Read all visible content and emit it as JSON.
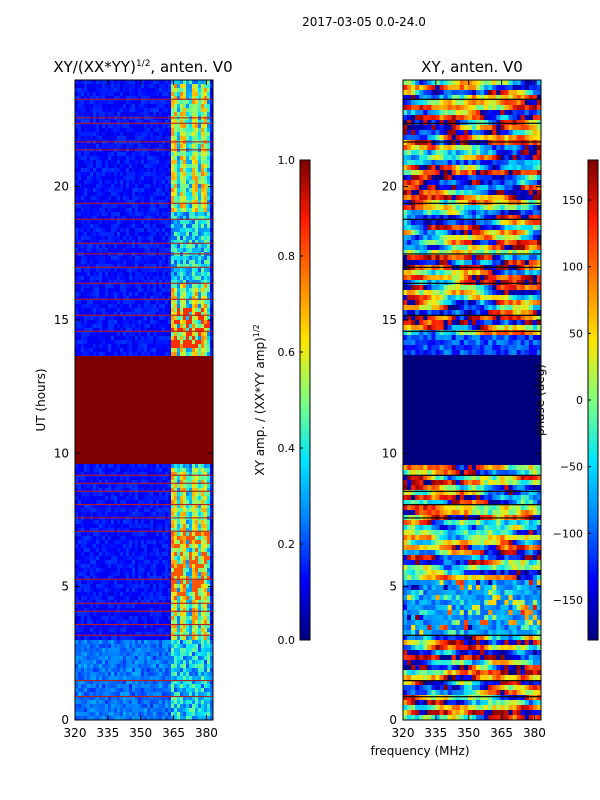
{
  "figure": {
    "suptitle": "2017-03-05 0.0-24.0"
  },
  "colormap": [
    "#00007f",
    "#0000ff",
    "#007fff",
    "#00e5ff",
    "#7fff7f",
    "#ffe500",
    "#ff7f00",
    "#ff1a00",
    "#7f0000"
  ],
  "chart_data": [
    {
      "type": "heatmap",
      "title_main": "XY/(XX*YY)",
      "title_sup": "1/2",
      "title_tail": ", anten. V0",
      "xlabel": "",
      "ylabel": "UT (hours)",
      "xlim": [
        320,
        383
      ],
      "ylim": [
        0,
        24
      ],
      "xticks": [
        "320",
        "335",
        "350",
        "365",
        "380"
      ],
      "xtick_values": [
        320,
        335,
        350,
        365,
        380
      ],
      "yticks": [
        "0",
        "5",
        "10",
        "15",
        "20"
      ],
      "ytick_values": [
        0,
        5,
        10,
        15,
        20
      ],
      "description_values": {
        "saturated_band_hours": [
          9.6,
          13.6
        ],
        "bright_freq_range_mhz": [
          364,
          382
        ],
        "background_level": 0.1
      },
      "colorbar": {
        "label": "XY amp. / (XX*YY amp)",
        "label_sup": "1/2",
        "range": [
          0.0,
          1.0
        ],
        "ticks": [
          "0.0",
          "0.2",
          "0.4",
          "0.6",
          "0.8",
          "1.0"
        ],
        "tick_values": [
          0.0,
          0.2,
          0.4,
          0.6,
          0.8,
          1.0
        ]
      }
    },
    {
      "type": "heatmap",
      "title_main": "XY, anten. V0",
      "xlabel": "frequency (MHz)",
      "ylabel": "",
      "xlim": [
        320,
        383
      ],
      "ylim": [
        0,
        24
      ],
      "xticks": [
        "320",
        "335",
        "350",
        "365",
        "380"
      ],
      "xtick_values": [
        320,
        335,
        350,
        365,
        380
      ],
      "yticks": [
        "0",
        "5",
        "10",
        "15",
        "20"
      ],
      "ytick_values": [
        0,
        5,
        10,
        15,
        20
      ],
      "description_values": {
        "constant_phase_band_hours": [
          9.6,
          13.6
        ],
        "constant_phase_deg": -180
      },
      "colorbar": {
        "label": "phase (deg)",
        "range": [
          -180,
          180
        ],
        "ticks": [
          "−150",
          "−100",
          "−50",
          "0",
          "50",
          "100",
          "150"
        ],
        "tick_values": [
          -150,
          -100,
          -50,
          0,
          50,
          100,
          150
        ]
      }
    }
  ]
}
